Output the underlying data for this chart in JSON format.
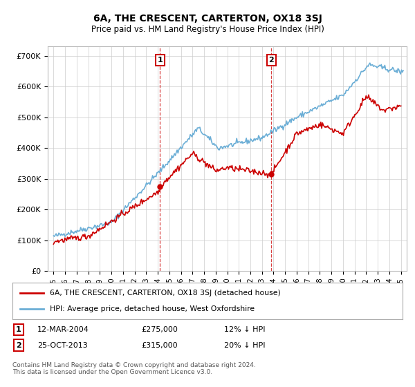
{
  "title": "6A, THE CRESCENT, CARTERTON, OX18 3SJ",
  "subtitle": "Price paid vs. HM Land Registry's House Price Index (HPI)",
  "ylabel_ticks": [
    "£0",
    "£100K",
    "£200K",
    "£300K",
    "£400K",
    "£500K",
    "£600K",
    "£700K"
  ],
  "ytick_values": [
    0,
    100000,
    200000,
    300000,
    400000,
    500000,
    600000,
    700000
  ],
  "ylim": [
    0,
    730000
  ],
  "xlim_start": 1994.5,
  "xlim_end": 2025.5,
  "hpi_color": "#6baed6",
  "price_color": "#cc0000",
  "marker1_date": 2004.19,
  "marker1_price": 275000,
  "marker1_label": "1",
  "marker2_date": 2013.81,
  "marker2_price": 315000,
  "marker2_label": "2",
  "legend_line1": "6A, THE CRESCENT, CARTERTON, OX18 3SJ (detached house)",
  "legend_line2": "HPI: Average price, detached house, West Oxfordshire",
  "row1_label": "1",
  "row1_date": "12-MAR-2004",
  "row1_price": "£275,000",
  "row1_hpi": "12% ↓ HPI",
  "row2_label": "2",
  "row2_date": "25-OCT-2013",
  "row2_price": "£315,000",
  "row2_hpi": "20% ↓ HPI",
  "footnote": "Contains HM Land Registry data © Crown copyright and database right 2024.\nThis data is licensed under the Open Government Licence v3.0.",
  "background_color": "#ffffff",
  "grid_color": "#cccccc"
}
